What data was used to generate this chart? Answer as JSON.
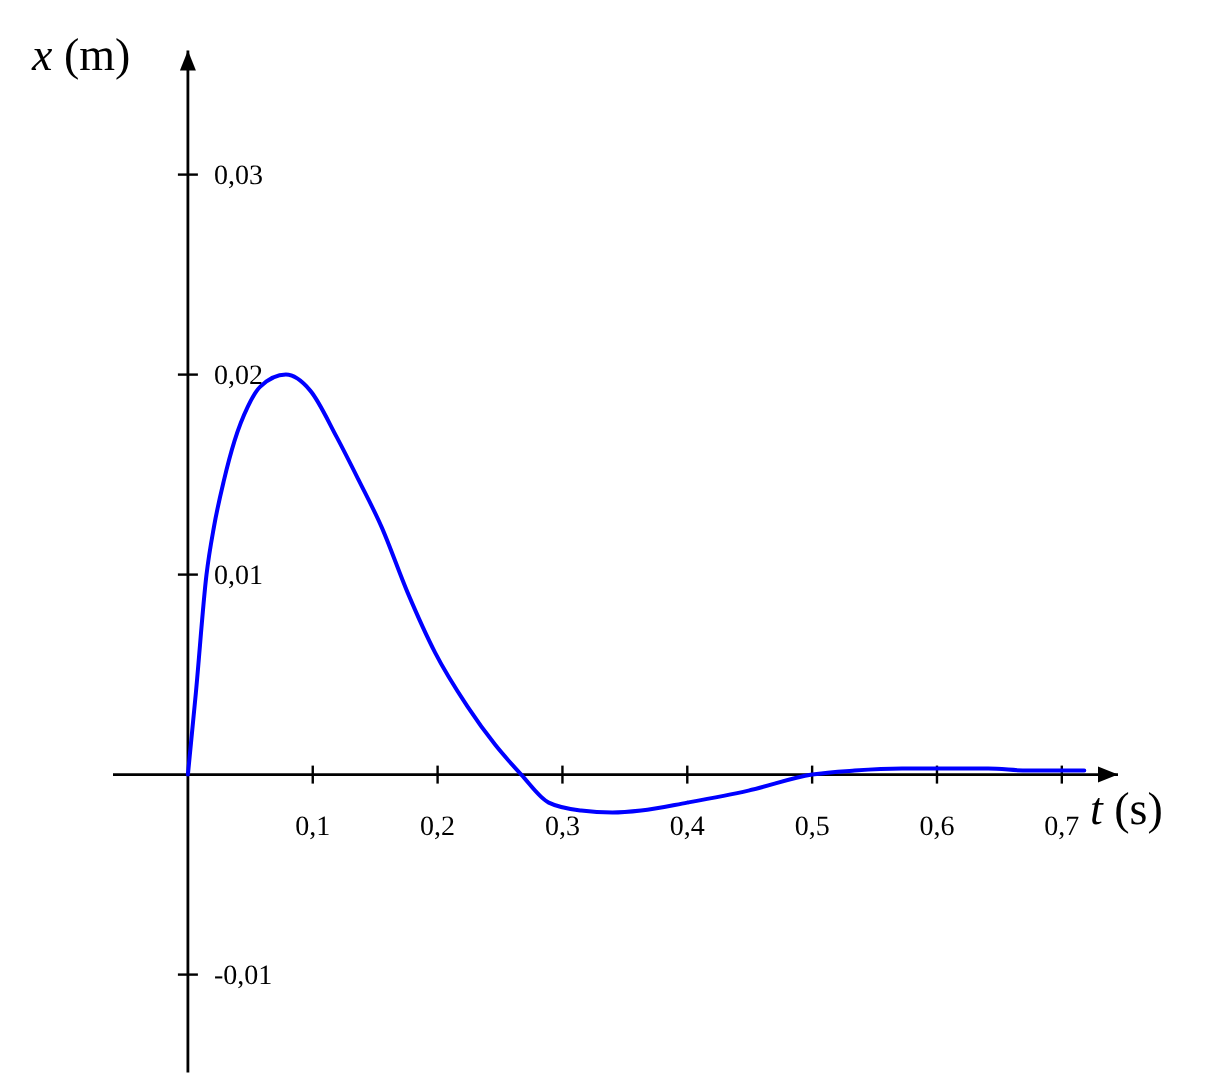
{
  "chart_data": {
    "type": "line",
    "xlabel": "t (s)",
    "ylabel": "x (m)",
    "color": "#0000ff",
    "x": [
      0,
      0.0064,
      0.0149,
      0.0209,
      0.0288,
      0.0374,
      0.048,
      0.058,
      0.0785,
      0.098,
      0.119,
      0.137,
      0.155,
      0.176,
      0.198,
      0.224,
      0.246,
      0.267,
      0.289,
      0.315,
      0.34,
      0.363,
      0.4,
      0.449,
      0.5,
      0.534,
      0.572,
      0.604,
      0.641,
      0.673,
      0.718
    ],
    "values": [
      0,
      0.0041,
      0.01,
      0.0124,
      0.0147,
      0.0167,
      0.0184,
      0.0194,
      0.02,
      0.0192,
      0.0169,
      0.0147,
      0.0124,
      0.0091,
      0.0061,
      0.0034,
      0.0015,
      0,
      -0.0014,
      -0.0018,
      -0.0019,
      -0.0018,
      -0.0014,
      -0.0008,
      0,
      0.0002,
      0.0003,
      0.0003,
      0.0003,
      0.0002,
      0.0002
    ],
    "xlim": [
      -0.06,
      0.745
    ],
    "ylim": [
      -0.0149,
      0.0362
    ],
    "xticks": [
      {
        "value": 0.1,
        "label": "0,1"
      },
      {
        "value": 0.2,
        "label": "0,2"
      },
      {
        "value": 0.3,
        "label": "0,3"
      },
      {
        "value": 0.4,
        "label": "0,4"
      },
      {
        "value": 0.5,
        "label": "0,5"
      },
      {
        "value": 0.6,
        "label": "0,6"
      },
      {
        "value": 0.7,
        "label": "0,7"
      }
    ],
    "yticks": [
      {
        "value": -0.01,
        "label": "-0,01"
      },
      {
        "value": 0.01,
        "label": "0,01"
      },
      {
        "value": 0.02,
        "label": "0,02"
      },
      {
        "value": 0.03,
        "label": "0,03"
      }
    ]
  }
}
